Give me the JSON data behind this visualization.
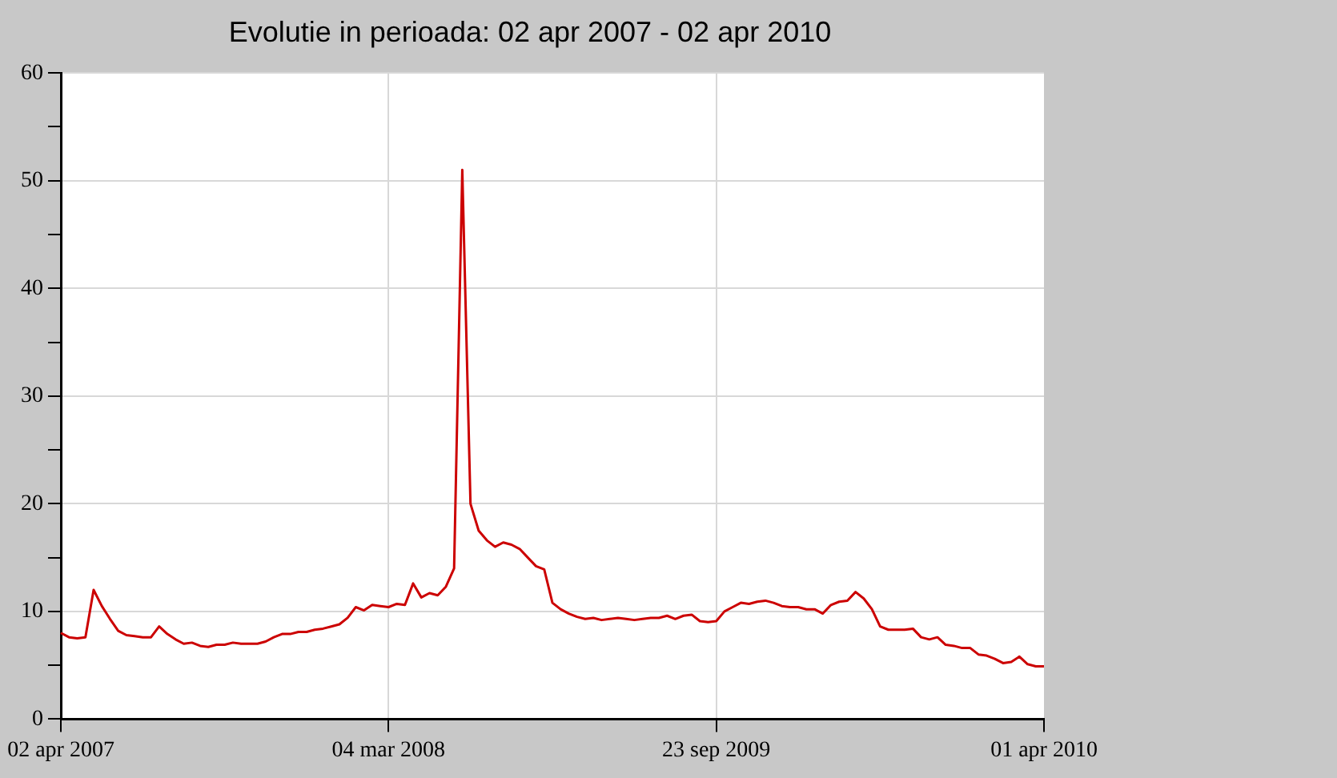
{
  "chart_data": {
    "type": "line",
    "title": "Evolutie in perioada: 02 apr 2007 - 02 apr 2010",
    "categories": [
      "02 apr 2007",
      null,
      null,
      null,
      null,
      null,
      null,
      null,
      null,
      null,
      null,
      null,
      null,
      null,
      null,
      null,
      null,
      null,
      null,
      null,
      null,
      null,
      null,
      null,
      null,
      null,
      null,
      null,
      null,
      null,
      null,
      null,
      null,
      null,
      null,
      null,
      null,
      null,
      null,
      null,
      "04 mar 2008",
      null,
      null,
      null,
      null,
      null,
      null,
      null,
      null,
      null,
      null,
      null,
      null,
      null,
      null,
      null,
      null,
      null,
      null,
      null,
      null,
      null,
      null,
      null,
      null,
      null,
      null,
      null,
      null,
      null,
      null,
      null,
      null,
      null,
      null,
      null,
      null,
      null,
      null,
      null,
      "23 sep 2009",
      null,
      null,
      null,
      null,
      null,
      null,
      null,
      null,
      null,
      null,
      null,
      null,
      null,
      null,
      null,
      null,
      null,
      null,
      null,
      null,
      null,
      null,
      null,
      null,
      null,
      null,
      null,
      null,
      null,
      null,
      null,
      null,
      null,
      null,
      null,
      null,
      null,
      null,
      null,
      "01 apr 2010"
    ],
    "values": [
      8,
      7.6,
      7.5,
      7.6,
      12,
      10.5,
      9.3,
      8.2,
      7.8,
      7.7,
      7.6,
      7.6,
      8.6,
      7.9,
      7.4,
      7.0,
      7.1,
      6.8,
      6.7,
      6.9,
      6.9,
      7.1,
      7.0,
      7.0,
      7.0,
      7.2,
      7.6,
      7.9,
      7.9,
      8.1,
      8.1,
      8.3,
      8.4,
      8.6,
      8.8,
      9.4,
      10.4,
      10.1,
      10.6,
      10.5,
      10.4,
      10.7,
      10.6,
      12.6,
      11.3,
      11.7,
      11.5,
      12.3,
      14,
      51,
      20,
      17.5,
      16.6,
      16,
      16.4,
      16.2,
      15.8,
      15.0,
      14.2,
      13.9,
      10.8,
      10.2,
      9.8,
      9.5,
      9.3,
      9.4,
      9.2,
      9.3,
      9.4,
      9.3,
      9.2,
      9.3,
      9.4,
      9.4,
      9.6,
      9.3,
      9.6,
      9.7,
      9.1,
      9.0,
      9.1,
      10.0,
      10.4,
      10.8,
      10.7,
      10.9,
      11.0,
      10.8,
      10.5,
      10.4,
      10.4,
      10.2,
      10.2,
      9.8,
      10.6,
      10.9,
      11.0,
      11.8,
      11.2,
      10.2,
      8.6,
      8.3,
      8.3,
      8.3,
      8.4,
      7.6,
      7.4,
      7.6,
      6.9,
      6.8,
      6.6,
      6.6,
      6.0,
      5.9,
      5.6,
      5.2,
      5.3,
      5.8,
      5.1,
      4.9,
      4.9
    ],
    "color": "#cc0000",
    "ylim": [
      0,
      60
    ],
    "yticks": [
      0,
      {
        "value": 5,
        "label": null
      },
      10,
      {
        "value": 15,
        "label": null
      },
      20,
      {
        "value": 25,
        "label": null
      },
      30,
      {
        "value": 35,
        "label": null
      },
      40,
      {
        "value": 45,
        "label": null
      },
      50,
      {
        "value": 55,
        "label": null
      },
      60
    ],
    "grid": true
  }
}
